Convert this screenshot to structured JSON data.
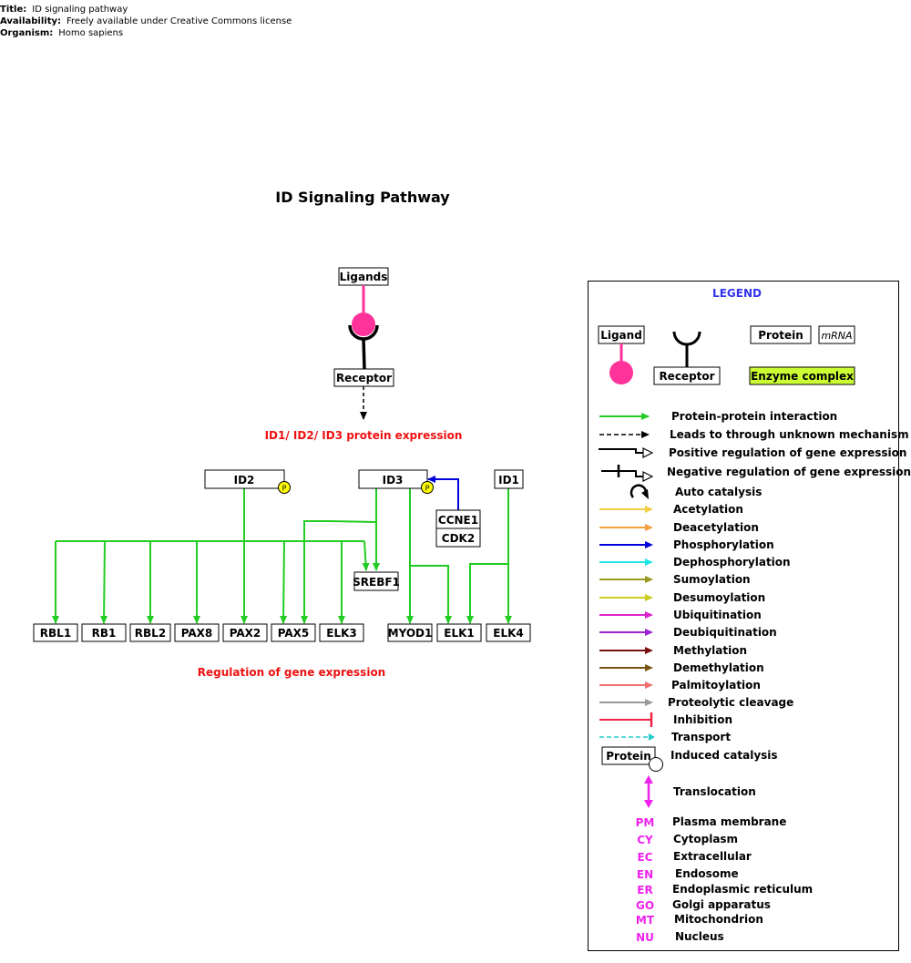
{
  "meta": {
    "title_label": "Title:",
    "title_value": "ID signaling pathway",
    "availability_label": "Availability:",
    "availability_value": "Freely available under Creative Commons license",
    "organism_label": "Organism:",
    "organism_value": "Homo sapiens"
  },
  "diagram": {
    "title": "ID Signaling Pathway",
    "ligands": "Ligands",
    "receptor": "Receptor",
    "expression_label": "ID1/ ID2/ ID3 protein expression",
    "regulation_label": "Regulation of gene expression",
    "phospho_badge": "P",
    "proteins": {
      "id2": "ID2",
      "id3": "ID3",
      "id1": "ID1",
      "ccne1": "CCNE1",
      "cdk2": "CDK2",
      "srebf1": "SREBF1",
      "rbl1": "RBL1",
      "rb1": "RB1",
      "rbl2": "RBL2",
      "pax8": "PAX8",
      "pax2": "PAX2",
      "pax5": "PAX5",
      "elk3": "ELK3",
      "myod1": "MYOD1",
      "elk1": "ELK1",
      "elk4": "ELK4"
    }
  },
  "legend": {
    "title": "LEGEND",
    "ligand": "Ligand",
    "receptor": "Receptor",
    "protein": "Protein",
    "mrna": "mRNA",
    "enzyme_complex": "Enzyme complex",
    "items": [
      {
        "label": "Protein-protein interaction",
        "color": "#22cc22"
      },
      {
        "label": "Leads to through unknown mechanism",
        "color": "#000000"
      },
      {
        "label": "Positive regulation of gene expression",
        "color": "#000000"
      },
      {
        "label": "Negative regulation of gene expression",
        "color": "#000000"
      },
      {
        "label": "Auto catalysis",
        "color": "#000000"
      },
      {
        "label": "Acetylation",
        "color": "#f2cc44"
      },
      {
        "label": "Deacetylation",
        "color": "#f4a040"
      },
      {
        "label": "Phosphorylation",
        "color": "#0000dd"
      },
      {
        "label": "Dephosphorylation",
        "color": "#22e6e6"
      },
      {
        "label": "Sumoylation",
        "color": "#999922"
      },
      {
        "label": "Desumoylation",
        "color": "#cccc22"
      },
      {
        "label": "Ubiquitination",
        "color": "#dd22cc"
      },
      {
        "label": "Deubiquitination",
        "color": "#9922cc"
      },
      {
        "label": "Methylation",
        "color": "#771111"
      },
      {
        "label": "Demethylation",
        "color": "#775511"
      },
      {
        "label": "Palmitoylation",
        "color": "#f07070"
      },
      {
        "label": "Proteolytic cleavage",
        "color": "#999999"
      },
      {
        "label": "Inhibition",
        "color": "#ee2244"
      },
      {
        "label": "Transport",
        "color": "#22cccc"
      }
    ],
    "induced_protein": "Protein",
    "induced_catalysis": "Induced catalysis",
    "translocation": "Translocation",
    "locations": [
      {
        "code": "PM",
        "label": "Plasma membrane"
      },
      {
        "code": "CY",
        "label": "Cytoplasm"
      },
      {
        "code": "EC",
        "label": "Extracellular"
      },
      {
        "code": "EN",
        "label": "Endosome"
      },
      {
        "code": "ER",
        "label": "Endoplasmic reticulum"
      },
      {
        "code": "GO",
        "label": "Golgi apparatus"
      },
      {
        "code": "MT",
        "label": "Mitochondrion"
      },
      {
        "code": "NU",
        "label": "Nucleus"
      }
    ],
    "colors": {
      "title": "#3333ee",
      "ligand": "#ff3399",
      "enzyme_complex": "#ccff33",
      "location_code": "#ee22ee",
      "translocation": "#ee22ee"
    }
  },
  "colors": {
    "interaction": "#22cc22",
    "phosphorylation": "#0000dd",
    "red_label": "#ee1111",
    "phospho_badge": "#ffff00",
    "ligand": "#ff3399"
  }
}
